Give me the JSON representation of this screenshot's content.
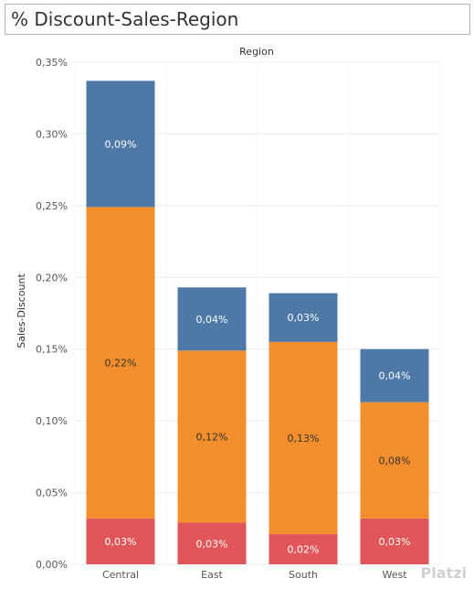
{
  "page_title": "% Discount-Sales-Region",
  "watermark": "Platzi",
  "colors": {
    "segment_top": "#4e79a7",
    "segment_middle": "#f28e2b",
    "segment_bottom": "#e15759",
    "grid": "#ececec",
    "axis_text": "#555555"
  },
  "chart_data": {
    "type": "bar",
    "stacked": true,
    "title": "",
    "column_header": "Region",
    "ylabel": "Sales-Discount",
    "categories": [
      "Central",
      "East",
      "South",
      "West"
    ],
    "ylim": [
      0,
      0.35
    ],
    "yticks": [
      "0,00%",
      "0,05%",
      "0,10%",
      "0,15%",
      "0,20%",
      "0,25%",
      "0,30%",
      "0,35%"
    ],
    "ytick_values": [
      0,
      0.05,
      0.1,
      0.15,
      0.2,
      0.25,
      0.3,
      0.35
    ],
    "grid": true,
    "series": [
      {
        "color_key": "segment_bottom",
        "values": [
          0.032,
          0.029,
          0.021,
          0.032
        ],
        "labels": [
          "0,03%",
          "0,03%",
          "0,02%",
          "0,03%"
        ]
      },
      {
        "color_key": "segment_middle",
        "values": [
          0.217,
          0.12,
          0.134,
          0.081
        ],
        "labels": [
          "0,22%",
          "0,12%",
          "0,13%",
          "0,08%"
        ]
      },
      {
        "color_key": "segment_top",
        "values": [
          0.088,
          0.044,
          0.034,
          0.037
        ],
        "labels": [
          "0,09%",
          "0,04%",
          "0,03%",
          "0,04%"
        ]
      }
    ]
  }
}
